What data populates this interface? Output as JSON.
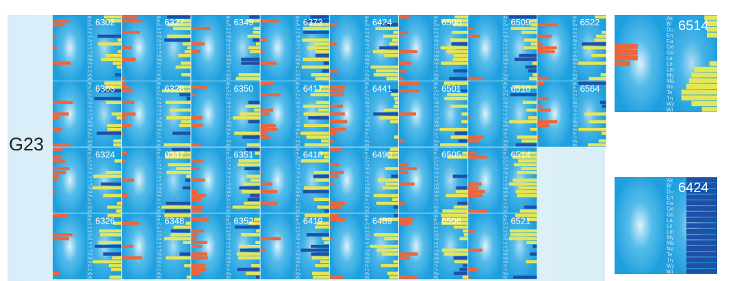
{
  "group_label": "G23",
  "colors": {
    "background_blue": "#1e9fde",
    "glow": "#dff3fb",
    "orange": "#f0643a",
    "yellow": "#e4e65a",
    "navy": "#1e50a8",
    "label_text": "#ffffff"
  },
  "row_labels": [
    "Ak",
    "Bl",
    "Du",
    "En",
    "Fa",
    "Ge",
    "Gs",
    "La",
    "Le",
    "Lm",
    "My",
    "Ma",
    "Ne",
    "Te",
    "Tn",
    "Wz",
    "Wi"
  ],
  "chart_data": [
    {
      "type": "heatmap",
      "title": "",
      "grid": [
        [
          "6302",
          "6327",
          "6349",
          "6373",
          "6424",
          "6500",
          "6509",
          "6522"
        ],
        [
          "6303",
          "6328",
          "6350",
          "6417",
          "6441",
          "6501",
          "6510",
          "6564"
        ],
        [
          "6324",
          "6347",
          "6351",
          "6418",
          "6490",
          "6505",
          "6514"
        ],
        [
          "6326",
          "6348",
          "6352",
          "6419",
          "6489",
          "6506",
          "6521"
        ]
      ]
    },
    {
      "type": "heatmap",
      "title": "6514",
      "left_panel": [
        0,
        0,
        0,
        0,
        0,
        0.45,
        0.45,
        0.45,
        0.3,
        0,
        0,
        0,
        0,
        0,
        0,
        0,
        0
      ],
      "right_panel": [
        0.25,
        0.2,
        0.2,
        0.2,
        0,
        0,
        0,
        0,
        0.15,
        0.45,
        0.5,
        0.55,
        0.6,
        0.7,
        0.7,
        0.5,
        0.3
      ],
      "right_color": "yellow"
    },
    {
      "type": "heatmap",
      "title": "6424",
      "left_panel": [
        0,
        0,
        0,
        0,
        0,
        0,
        0,
        0,
        0,
        0,
        0,
        0,
        0,
        0,
        0,
        0,
        0
      ],
      "right_panel": [
        0.6,
        0.6,
        0.6,
        0.6,
        0.6,
        0.6,
        0.6,
        0.6,
        0.6,
        0.6,
        0.6,
        0.6,
        0.6,
        0.6,
        0.6,
        0.6,
        0.6
      ],
      "right_color": "navy"
    }
  ]
}
